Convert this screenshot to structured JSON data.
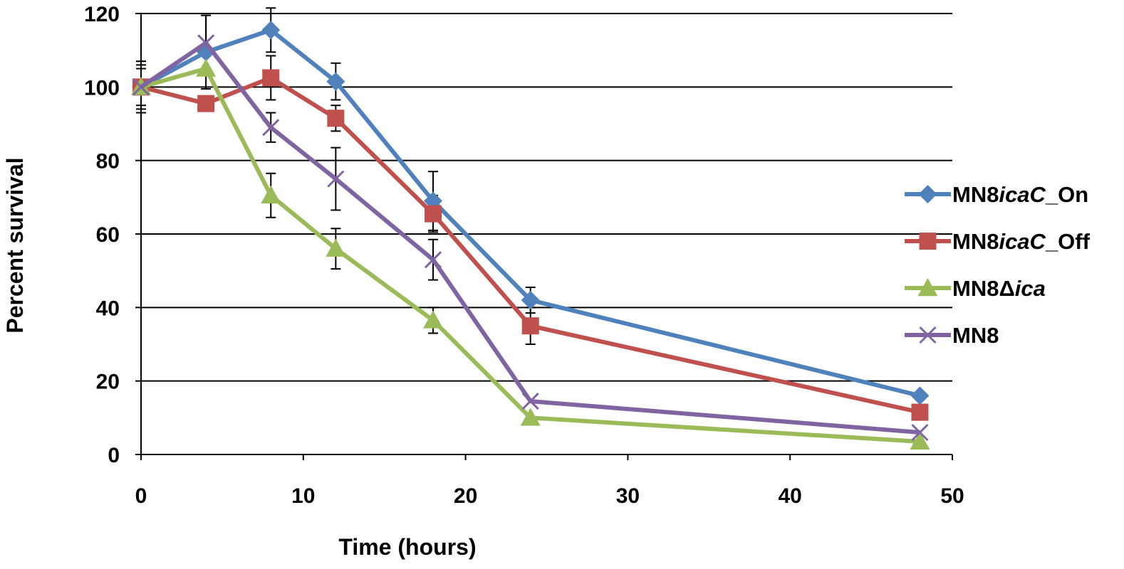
{
  "chart_data": {
    "type": "line",
    "title": "",
    "xlabel": "Time (hours)",
    "ylabel": "Percent survival",
    "xlim": [
      0,
      50
    ],
    "ylim": [
      0,
      120
    ],
    "x_ticks": [
      "0",
      "10",
      "20",
      "30",
      "40",
      "50"
    ],
    "y_ticks": [
      "0",
      "20",
      "40",
      "60",
      "80",
      "100",
      "120"
    ],
    "grid": "horizontal",
    "legend_position": "right",
    "x": [
      0,
      4,
      8,
      12,
      18,
      24,
      48
    ],
    "series": [
      {
        "name": "MN8icaC_On",
        "legend_parts": [
          {
            "text": "MN8",
            "italic": false
          },
          {
            "text": "icaC",
            "italic": true
          },
          {
            "text": "_On",
            "italic": false
          }
        ],
        "color": "#4F81BD",
        "marker": "diamond",
        "values": [
          100,
          109.5,
          115.5,
          101.5,
          69,
          42,
          16
        ],
        "errors": [
          7,
          10,
          6,
          5,
          8,
          3.5,
          0
        ]
      },
      {
        "name": "MN8icaC_Off",
        "legend_parts": [
          {
            "text": "MN8",
            "italic": false
          },
          {
            "text": "icaC",
            "italic": true
          },
          {
            "text": "_Off",
            "italic": false
          }
        ],
        "color": "#C0504D",
        "marker": "square",
        "values": [
          100,
          95.5,
          102.5,
          91.5,
          65.5,
          35,
          11.5
        ],
        "errors": [
          6,
          0,
          6,
          3.5,
          5,
          5,
          0
        ]
      },
      {
        "name": "MN8Δica",
        "legend_parts": [
          {
            "text": "MN8Δ",
            "italic": false
          },
          {
            "text": "ica",
            "italic": true
          }
        ],
        "color": "#9BBB59",
        "marker": "triangle",
        "values": [
          100,
          105,
          70.5,
          56,
          36.5,
          10,
          3.5
        ],
        "errors": [
          5,
          0,
          6,
          5.5,
          3.5,
          0,
          0
        ]
      },
      {
        "name": "MN8",
        "legend_parts": [
          {
            "text": "MN8",
            "italic": false
          }
        ],
        "color": "#8064A2",
        "marker": "x",
        "values": [
          100,
          112,
          89,
          75,
          53,
          14.5,
          6
        ],
        "errors": [
          7,
          7.5,
          4,
          8.5,
          5.5,
          0,
          0
        ]
      }
    ]
  }
}
